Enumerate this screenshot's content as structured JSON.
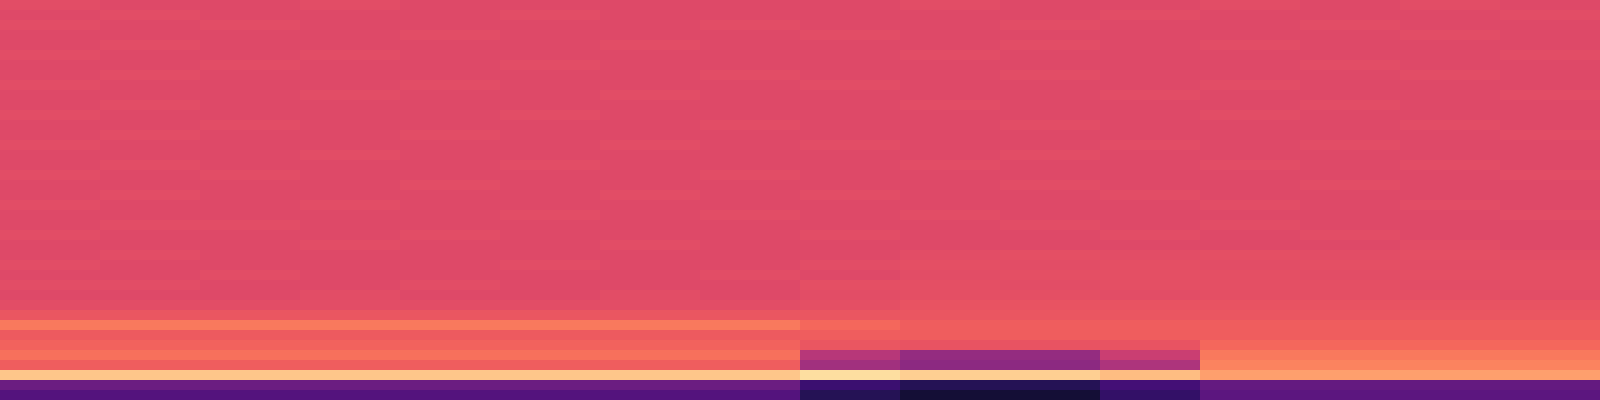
{
  "chart_data": {
    "type": "heatmap",
    "tick_labels": false,
    "zlim": [
      0,
      1
    ],
    "cells": [
      [
        0.61,
        0.6,
        0.6,
        0.61,
        0.6,
        0.6,
        0.6,
        0.6,
        0.6,
        0.61,
        0.6,
        0.6,
        0.61,
        0.6,
        0.61,
        0.6
      ],
      [
        0.6,
        0.61,
        0.6,
        0.6,
        0.6,
        0.61,
        0.6,
        0.6,
        0.6,
        0.6,
        0.6,
        0.61,
        0.6,
        0.6,
        0.6,
        0.61
      ],
      [
        0.61,
        0.6,
        0.61,
        0.6,
        0.6,
        0.6,
        0.6,
        0.61,
        0.6,
        0.6,
        0.61,
        0.6,
        0.6,
        0.61,
        0.6,
        0.6
      ],
      [
        0.6,
        0.6,
        0.6,
        0.6,
        0.61,
        0.6,
        0.6,
        0.6,
        0.61,
        0.6,
        0.6,
        0.6,
        0.6,
        0.6,
        0.61,
        0.6
      ],
      [
        0.6,
        0.61,
        0.6,
        0.6,
        0.6,
        0.6,
        0.61,
        0.6,
        0.6,
        0.6,
        0.61,
        0.6,
        0.61,
        0.6,
        0.6,
        0.6
      ],
      [
        0.61,
        0.6,
        0.6,
        0.61,
        0.6,
        0.6,
        0.6,
        0.6,
        0.6,
        0.61,
        0.6,
        0.6,
        0.6,
        0.6,
        0.6,
        0.61
      ],
      [
        0.6,
        0.6,
        0.61,
        0.6,
        0.6,
        0.61,
        0.6,
        0.6,
        0.6,
        0.6,
        0.6,
        0.6,
        0.6,
        0.61,
        0.6,
        0.6
      ],
      [
        0.6,
        0.61,
        0.6,
        0.6,
        0.6,
        0.6,
        0.6,
        0.61,
        0.6,
        0.6,
        0.61,
        0.6,
        0.6,
        0.6,
        0.61,
        0.6
      ],
      [
        0.61,
        0.6,
        0.6,
        0.6,
        0.61,
        0.6,
        0.6,
        0.6,
        0.61,
        0.6,
        0.6,
        0.6,
        0.61,
        0.6,
        0.6,
        0.6
      ],
      [
        0.6,
        0.6,
        0.6,
        0.61,
        0.6,
        0.6,
        0.61,
        0.6,
        0.6,
        0.6,
        0.6,
        0.61,
        0.6,
        0.6,
        0.6,
        0.61
      ],
      [
        0.6,
        0.61,
        0.6,
        0.6,
        0.6,
        0.6,
        0.6,
        0.6,
        0.6,
        0.61,
        0.6,
        0.6,
        0.6,
        0.61,
        0.6,
        0.6
      ],
      [
        0.61,
        0.6,
        0.6,
        0.6,
        0.6,
        0.61,
        0.6,
        0.6,
        0.6,
        0.6,
        0.6,
        0.6,
        0.61,
        0.6,
        0.6,
        0.6
      ],
      [
        0.6,
        0.6,
        0.61,
        0.6,
        0.6,
        0.6,
        0.6,
        0.61,
        0.6,
        0.6,
        0.61,
        0.6,
        0.6,
        0.6,
        0.61,
        0.6
      ],
      [
        0.6,
        0.61,
        0.6,
        0.6,
        0.61,
        0.6,
        0.6,
        0.6,
        0.6,
        0.6,
        0.6,
        0.6,
        0.6,
        0.6,
        0.6,
        0.61
      ],
      [
        0.61,
        0.6,
        0.6,
        0.6,
        0.6,
        0.6,
        0.61,
        0.6,
        0.61,
        0.6,
        0.6,
        0.61,
        0.6,
        0.61,
        0.6,
        0.6
      ],
      [
        0.6,
        0.6,
        0.6,
        0.61,
        0.6,
        0.6,
        0.6,
        0.6,
        0.6,
        0.6,
        0.61,
        0.6,
        0.6,
        0.6,
        0.6,
        0.6
      ],
      [
        0.6,
        0.61,
        0.6,
        0.6,
        0.6,
        0.61,
        0.6,
        0.6,
        0.6,
        0.61,
        0.6,
        0.6,
        0.61,
        0.6,
        0.61,
        0.6
      ],
      [
        0.61,
        0.6,
        0.61,
        0.6,
        0.6,
        0.6,
        0.6,
        0.61,
        0.6,
        0.6,
        0.6,
        0.6,
        0.6,
        0.6,
        0.6,
        0.61
      ],
      [
        0.6,
        0.6,
        0.6,
        0.6,
        0.61,
        0.6,
        0.6,
        0.6,
        0.6,
        0.6,
        0.61,
        0.6,
        0.6,
        0.61,
        0.6,
        0.6
      ],
      [
        0.6,
        0.61,
        0.6,
        0.6,
        0.6,
        0.6,
        0.61,
        0.6,
        0.61,
        0.6,
        0.6,
        0.61,
        0.6,
        0.6,
        0.6,
        0.6
      ],
      [
        0.61,
        0.6,
        0.6,
        0.61,
        0.6,
        0.6,
        0.6,
        0.6,
        0.6,
        0.6,
        0.6,
        0.6,
        0.61,
        0.6,
        0.61,
        0.6
      ],
      [
        0.6,
        0.6,
        0.6,
        0.6,
        0.6,
        0.61,
        0.6,
        0.61,
        0.6,
        0.61,
        0.6,
        0.6,
        0.6,
        0.6,
        0.6,
        0.61
      ],
      [
        0.6,
        0.61,
        0.61,
        0.6,
        0.6,
        0.6,
        0.6,
        0.6,
        0.6,
        0.6,
        0.61,
        0.6,
        0.61,
        0.6,
        0.6,
        0.6
      ],
      [
        0.61,
        0.6,
        0.6,
        0.6,
        0.61,
        0.6,
        0.6,
        0.6,
        0.61,
        0.6,
        0.6,
        0.61,
        0.6,
        0.61,
        0.6,
        0.6
      ],
      [
        0.6,
        0.6,
        0.6,
        0.61,
        0.6,
        0.6,
        0.61,
        0.6,
        0.6,
        0.6,
        0.6,
        0.6,
        0.6,
        0.6,
        0.61,
        0.6
      ],
      [
        0.6,
        0.61,
        0.6,
        0.6,
        0.6,
        0.6,
        0.6,
        0.6,
        0.6,
        0.61,
        0.62,
        0.61,
        0.62,
        0.61,
        0.62,
        0.61
      ],
      [
        0.61,
        0.6,
        0.6,
        0.6,
        0.6,
        0.61,
        0.6,
        0.6,
        0.61,
        0.62,
        0.61,
        0.62,
        0.61,
        0.62,
        0.61,
        0.62
      ],
      [
        0.6,
        0.6,
        0.61,
        0.6,
        0.6,
        0.6,
        0.6,
        0.61,
        0.6,
        0.61,
        0.62,
        0.62,
        0.62,
        0.61,
        0.62,
        0.62
      ],
      [
        0.61,
        0.61,
        0.6,
        0.6,
        0.61,
        0.6,
        0.6,
        0.6,
        0.62,
        0.62,
        0.61,
        0.62,
        0.62,
        0.62,
        0.61,
        0.62
      ],
      [
        0.6,
        0.6,
        0.6,
        0.61,
        0.6,
        0.6,
        0.61,
        0.6,
        0.61,
        0.62,
        0.62,
        0.61,
        0.62,
        0.62,
        0.62,
        0.61
      ],
      [
        0.61,
        0.61,
        0.61,
        0.61,
        0.61,
        0.61,
        0.61,
        0.61,
        0.62,
        0.63,
        0.63,
        0.63,
        0.63,
        0.63,
        0.63,
        0.63
      ],
      [
        0.64,
        0.64,
        0.64,
        0.64,
        0.64,
        0.64,
        0.64,
        0.64,
        0.64,
        0.64,
        0.64,
        0.64,
        0.64,
        0.64,
        0.64,
        0.64
      ],
      [
        0.72,
        0.72,
        0.72,
        0.72,
        0.72,
        0.72,
        0.72,
        0.72,
        0.68,
        0.66,
        0.66,
        0.66,
        0.66,
        0.66,
        0.66,
        0.66
      ],
      [
        0.65,
        0.65,
        0.65,
        0.65,
        0.65,
        0.65,
        0.65,
        0.65,
        0.66,
        0.66,
        0.66,
        0.66,
        0.66,
        0.66,
        0.66,
        0.66
      ],
      [
        0.67,
        0.67,
        0.67,
        0.67,
        0.67,
        0.67,
        0.67,
        0.67,
        0.64,
        0.63,
        0.63,
        0.63,
        0.68,
        0.68,
        0.68,
        0.68
      ],
      [
        0.7,
        0.7,
        0.7,
        0.7,
        0.7,
        0.7,
        0.7,
        0.7,
        0.5,
        0.42,
        0.42,
        0.55,
        0.72,
        0.72,
        0.72,
        0.72
      ],
      [
        0.66,
        0.66,
        0.66,
        0.66,
        0.66,
        0.66,
        0.66,
        0.66,
        0.45,
        0.4,
        0.4,
        0.48,
        0.74,
        0.74,
        0.74,
        0.74
      ],
      [
        0.88,
        0.88,
        0.88,
        0.88,
        0.88,
        0.88,
        0.88,
        0.88,
        0.93,
        0.9,
        0.9,
        0.86,
        0.8,
        0.8,
        0.8,
        0.8
      ],
      [
        0.32,
        0.32,
        0.32,
        0.32,
        0.32,
        0.32,
        0.32,
        0.32,
        0.2,
        0.15,
        0.15,
        0.22,
        0.3,
        0.3,
        0.3,
        0.3
      ],
      [
        0.26,
        0.26,
        0.26,
        0.26,
        0.26,
        0.26,
        0.26,
        0.26,
        0.15,
        0.1,
        0.1,
        0.18,
        0.28,
        0.28,
        0.28,
        0.28
      ]
    ]
  }
}
